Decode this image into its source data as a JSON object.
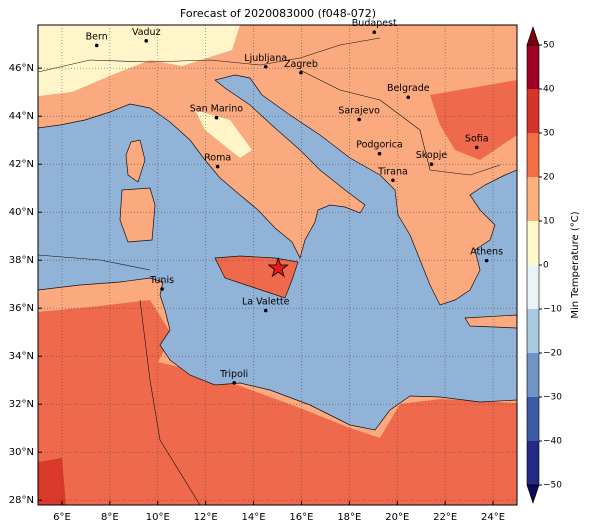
{
  "title": "Forecast of 2020083000 (f048-072)",
  "map": {
    "xlim": [
      5,
      25
    ],
    "ylim": [
      27.8,
      47.8
    ],
    "xticks": [
      {
        "value": 6,
        "label": "6°E"
      },
      {
        "value": 8,
        "label": "8°E"
      },
      {
        "value": 10,
        "label": "10°E"
      },
      {
        "value": 12,
        "label": "12°E"
      },
      {
        "value": 14,
        "label": "14°E"
      },
      {
        "value": 16,
        "label": "16°E"
      },
      {
        "value": 18,
        "label": "18°E"
      },
      {
        "value": 20,
        "label": "20°E"
      },
      {
        "value": 22,
        "label": "22°E"
      },
      {
        "value": 24,
        "label": "24°E"
      }
    ],
    "yticks": [
      {
        "value": 28,
        "label": "28°N"
      },
      {
        "value": 30,
        "label": "30°N"
      },
      {
        "value": 32,
        "label": "32°N"
      },
      {
        "value": 34,
        "label": "34°N"
      },
      {
        "value": 36,
        "label": "36°N"
      },
      {
        "value": 38,
        "label": "38°N"
      },
      {
        "value": 40,
        "label": "40°N"
      },
      {
        "value": 42,
        "label": "42°N"
      },
      {
        "value": 44,
        "label": "44°N"
      },
      {
        "value": 46,
        "label": "46°N"
      }
    ],
    "grid": true,
    "cities": [
      {
        "name": "Bern",
        "lon": 7.45,
        "lat": 46.95
      },
      {
        "name": "Vaduz",
        "lon": 9.52,
        "lat": 47.14
      },
      {
        "name": "Budapest",
        "lon": 19.04,
        "lat": 47.5
      },
      {
        "name": "Ljubljana",
        "lon": 14.51,
        "lat": 46.06
      },
      {
        "name": "Zagreb",
        "lon": 15.98,
        "lat": 45.81
      },
      {
        "name": "Belgrade",
        "lon": 20.46,
        "lat": 44.79
      },
      {
        "name": "San Marino",
        "lon": 12.45,
        "lat": 43.94
      },
      {
        "name": "Sarajevo",
        "lon": 18.41,
        "lat": 43.86
      },
      {
        "name": "Roma",
        "lon": 12.5,
        "lat": 41.9
      },
      {
        "name": "Podgorica",
        "lon": 19.26,
        "lat": 42.44
      },
      {
        "name": "Skopje",
        "lon": 21.43,
        "lat": 42.0
      },
      {
        "name": "Sofia",
        "lon": 23.32,
        "lat": 42.7
      },
      {
        "name": "Tirana",
        "lon": 19.82,
        "lat": 41.33
      },
      {
        "name": "Athens",
        "lon": 23.73,
        "lat": 37.98
      },
      {
        "name": "Tunis",
        "lon": 10.18,
        "lat": 36.8
      },
      {
        "name": "La Valette",
        "lon": 14.51,
        "lat": 35.9
      },
      {
        "name": "Tripoli",
        "lon": 13.19,
        "lat": 32.89
      }
    ],
    "forecast_point": {
      "lon": 15.03,
      "lat": 37.67,
      "color": "#e41a1c"
    }
  },
  "colorbar": {
    "label": "Min Temperature (°C)",
    "lim": [
      -50,
      50
    ],
    "ticks": [
      {
        "value": -50,
        "label": "−50"
      },
      {
        "value": -40,
        "label": "−40"
      },
      {
        "value": -30,
        "label": "−30"
      },
      {
        "value": -20,
        "label": "−20"
      },
      {
        "value": -10,
        "label": "−10"
      },
      0,
      10,
      20,
      30,
      40,
      50
    ],
    "colors": [
      "#262a87",
      "#3b5ba6",
      "#6f95c6",
      "#a9cbe2",
      "#e8f4f8",
      "#fff8c9",
      "#fdb07d",
      "#f46d43",
      "#d4342a",
      "#a00026"
    ],
    "extend_colors": [
      "#0c0c55",
      "#7a0010"
    ]
  }
}
